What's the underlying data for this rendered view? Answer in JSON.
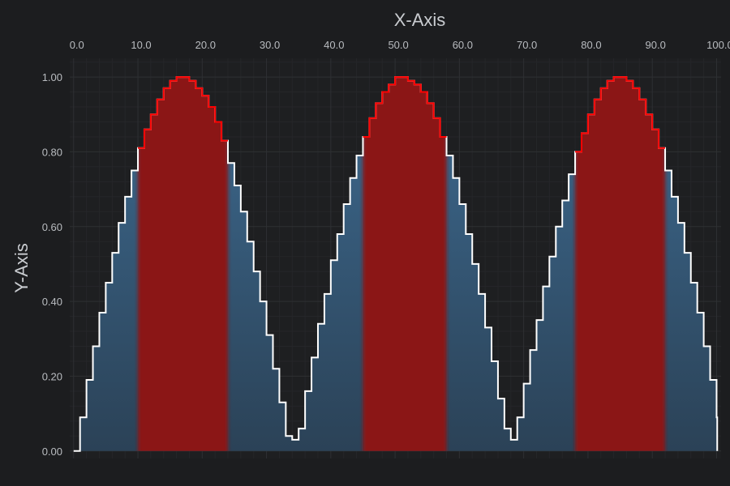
{
  "chart_data": {
    "type": "area",
    "title": "",
    "xlabel": "X-Axis",
    "ylabel": "Y-Axis",
    "xlim": [
      -0.6,
      100.7
    ],
    "ylim": [
      -0.02,
      1.05
    ],
    "x_ticks": [
      "0.0",
      "10.0",
      "20.0",
      "30.0",
      "40.0",
      "50.0",
      "60.0",
      "70.0",
      "80.0",
      "90.0",
      "100.0"
    ],
    "y_ticks": [
      "0.00",
      "0.20",
      "0.40",
      "0.60",
      "0.80",
      "1.00"
    ],
    "x_axis_position": "top",
    "grid": true,
    "step": true,
    "series": [
      {
        "x": [
          0,
          1,
          2,
          3,
          4,
          5,
          6,
          7,
          8,
          9,
          10,
          11,
          12,
          13,
          14,
          15,
          16,
          17,
          18,
          19,
          20,
          21,
          22,
          23,
          24,
          25,
          26,
          27,
          28,
          29,
          30,
          31,
          32,
          33,
          34,
          35,
          36,
          37,
          38,
          39,
          40,
          41,
          42,
          43,
          44,
          45,
          46,
          47,
          48,
          49,
          50,
          51,
          52,
          53,
          54,
          55,
          56,
          57,
          58,
          59,
          60,
          61,
          62,
          63,
          64,
          65,
          66,
          67,
          68,
          69,
          70,
          71,
          72,
          73,
          74,
          75,
          76,
          77,
          78,
          79,
          80,
          81,
          82,
          83,
          84,
          85,
          86,
          87,
          88,
          89,
          90,
          91,
          92,
          93,
          94,
          95,
          96,
          97,
          98,
          99,
          100
        ],
        "y": [
          0.0,
          0.09,
          0.19,
          0.28,
          0.37,
          0.45,
          0.53,
          0.61,
          0.68,
          0.75,
          0.81,
          0.86,
          0.9,
          0.94,
          0.97,
          0.99,
          1.0,
          1.0,
          0.99,
          0.97,
          0.95,
          0.92,
          0.88,
          0.83,
          0.77,
          0.71,
          0.64,
          0.56,
          0.48,
          0.4,
          0.31,
          0.22,
          0.13,
          0.04,
          0.03,
          0.06,
          0.16,
          0.25,
          0.34,
          0.42,
          0.51,
          0.58,
          0.66,
          0.73,
          0.79,
          0.84,
          0.89,
          0.93,
          0.96,
          0.98,
          1.0,
          1.0,
          0.99,
          0.98,
          0.96,
          0.93,
          0.89,
          0.84,
          0.79,
          0.73,
          0.66,
          0.58,
          0.5,
          0.42,
          0.33,
          0.24,
          0.14,
          0.06,
          0.03,
          0.09,
          0.18,
          0.27,
          0.35,
          0.44,
          0.52,
          0.6,
          0.67,
          0.74,
          0.8,
          0.85,
          0.9,
          0.94,
          0.97,
          0.99,
          1.0,
          1.0,
          0.99,
          0.97,
          0.94,
          0.9,
          0.86,
          0.81,
          0.75,
          0.68,
          0.61,
          0.53,
          0.45,
          0.37,
          0.28,
          0.19,
          0.09
        ],
        "color": "#ffffff",
        "fill_top": "#3d6a90",
        "fill_bottom": "#2b4257"
      }
    ],
    "highlight_threshold": 0.8,
    "highlight_color": "#ff0000",
    "highlight_fill": "#8b1313"
  },
  "colors": {
    "background": "#1c1d1f",
    "plot_background": "#1e1f21",
    "grid_major": "#2e3033",
    "grid_minor": "#252629",
    "tick_text": "#b9bcc0"
  }
}
